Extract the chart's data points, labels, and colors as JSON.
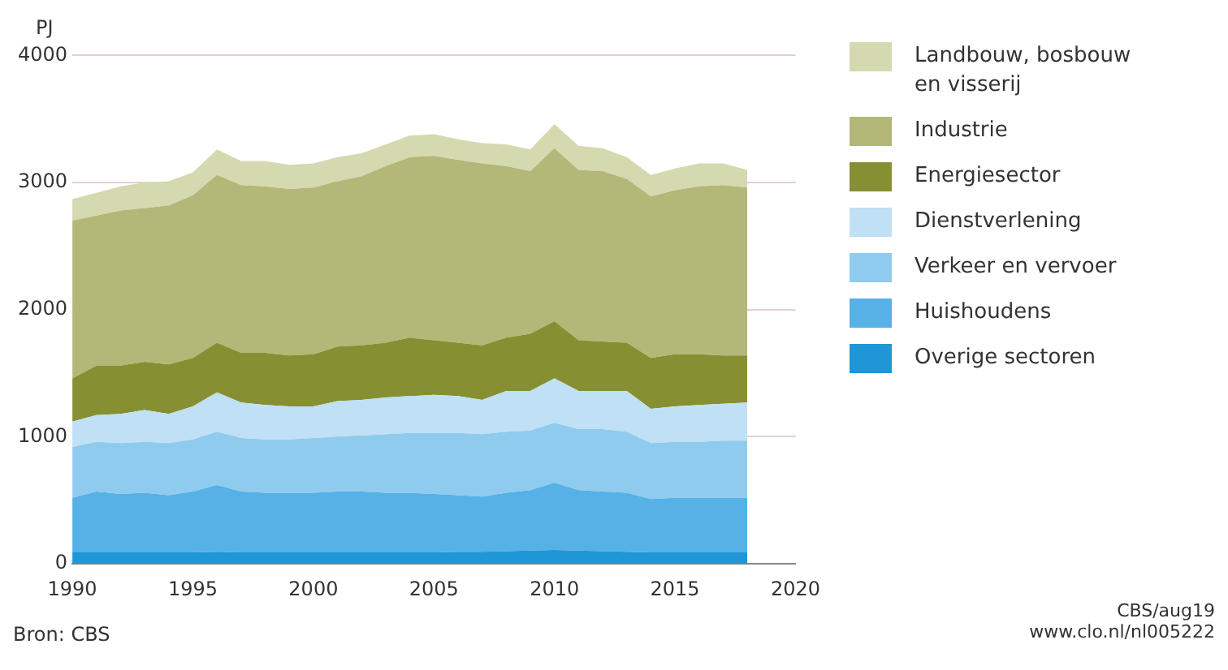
{
  "chart_data": {
    "type": "area",
    "ylabel": "PJ",
    "stacked": true,
    "x": [
      1990,
      1991,
      1992,
      1993,
      1994,
      1995,
      1996,
      1997,
      1998,
      1999,
      2000,
      2001,
      2002,
      2003,
      2004,
      2005,
      2006,
      2007,
      2008,
      2009,
      2010,
      2011,
      2012,
      2013,
      2014,
      2015,
      2016,
      2017,
      2018
    ],
    "series": [
      {
        "name": "Overige sectoren",
        "color": "#1f96d6",
        "values": [
          90,
          90,
          90,
          90,
          90,
          90,
          95,
          90,
          90,
          90,
          90,
          90,
          90,
          90,
          90,
          90,
          95,
          95,
          100,
          105,
          110,
          105,
          100,
          95,
          90,
          90,
          90,
          90,
          90
        ]
      },
      {
        "name": "Huishoudens",
        "color": "#55b1e6",
        "values": [
          430,
          480,
          460,
          470,
          450,
          480,
          525,
          480,
          470,
          470,
          470,
          480,
          480,
          470,
          470,
          460,
          445,
          435,
          460,
          475,
          530,
          475,
          470,
          465,
          420,
          430,
          430,
          430,
          430
        ]
      },
      {
        "name": "Verkeer en vervoer",
        "color": "#8fcbee",
        "values": [
          400,
          390,
          400,
          400,
          410,
          410,
          420,
          420,
          420,
          420,
          430,
          430,
          440,
          460,
          470,
          480,
          490,
          490,
          480,
          470,
          470,
          480,
          490,
          480,
          440,
          440,
          440,
          450,
          450
        ]
      },
      {
        "name": "Dienstverlening",
        "color": "#bfe0f5",
        "values": [
          200,
          210,
          230,
          250,
          230,
          260,
          310,
          280,
          270,
          260,
          250,
          280,
          280,
          290,
          290,
          300,
          290,
          270,
          320,
          310,
          350,
          300,
          300,
          320,
          270,
          280,
          290,
          290,
          300
        ]
      },
      {
        "name": "Energiesector",
        "color": "#878f33",
        "values": [
          340,
          390,
          380,
          380,
          390,
          380,
          390,
          390,
          410,
          400,
          410,
          430,
          430,
          430,
          460,
          430,
          420,
          430,
          420,
          450,
          450,
          400,
          390,
          380,
          400,
          410,
          400,
          380,
          370
        ]
      },
      {
        "name": "Industrie",
        "color": "#b3b878",
        "values": [
          1240,
          1180,
          1220,
          1210,
          1250,
          1280,
          1320,
          1320,
          1310,
          1310,
          1310,
          1300,
          1330,
          1390,
          1420,
          1450,
          1440,
          1430,
          1350,
          1280,
          1360,
          1340,
          1340,
          1290,
          1270,
          1290,
          1320,
          1340,
          1320
        ]
      },
      {
        "name": "Landbouw, bosbouw en visserij",
        "color": "#d4d9b0",
        "values": [
          170,
          180,
          190,
          200,
          190,
          180,
          200,
          190,
          200,
          190,
          190,
          190,
          180,
          170,
          170,
          170,
          160,
          160,
          170,
          170,
          190,
          190,
          180,
          170,
          170,
          170,
          180,
          170,
          140
        ]
      }
    ],
    "xlim": [
      1990,
      2020
    ],
    "xticks": [
      1990,
      1995,
      2000,
      2005,
      2010,
      2015,
      2020
    ],
    "ylim": [
      0,
      4000
    ],
    "yticks": [
      0,
      1000,
      2000,
      3000,
      4000
    ],
    "grid": "y",
    "legend": "right",
    "annotations": [
      "Bron: CBS",
      "CBS/aug19",
      "www.clo.nl/nl005222"
    ]
  }
}
